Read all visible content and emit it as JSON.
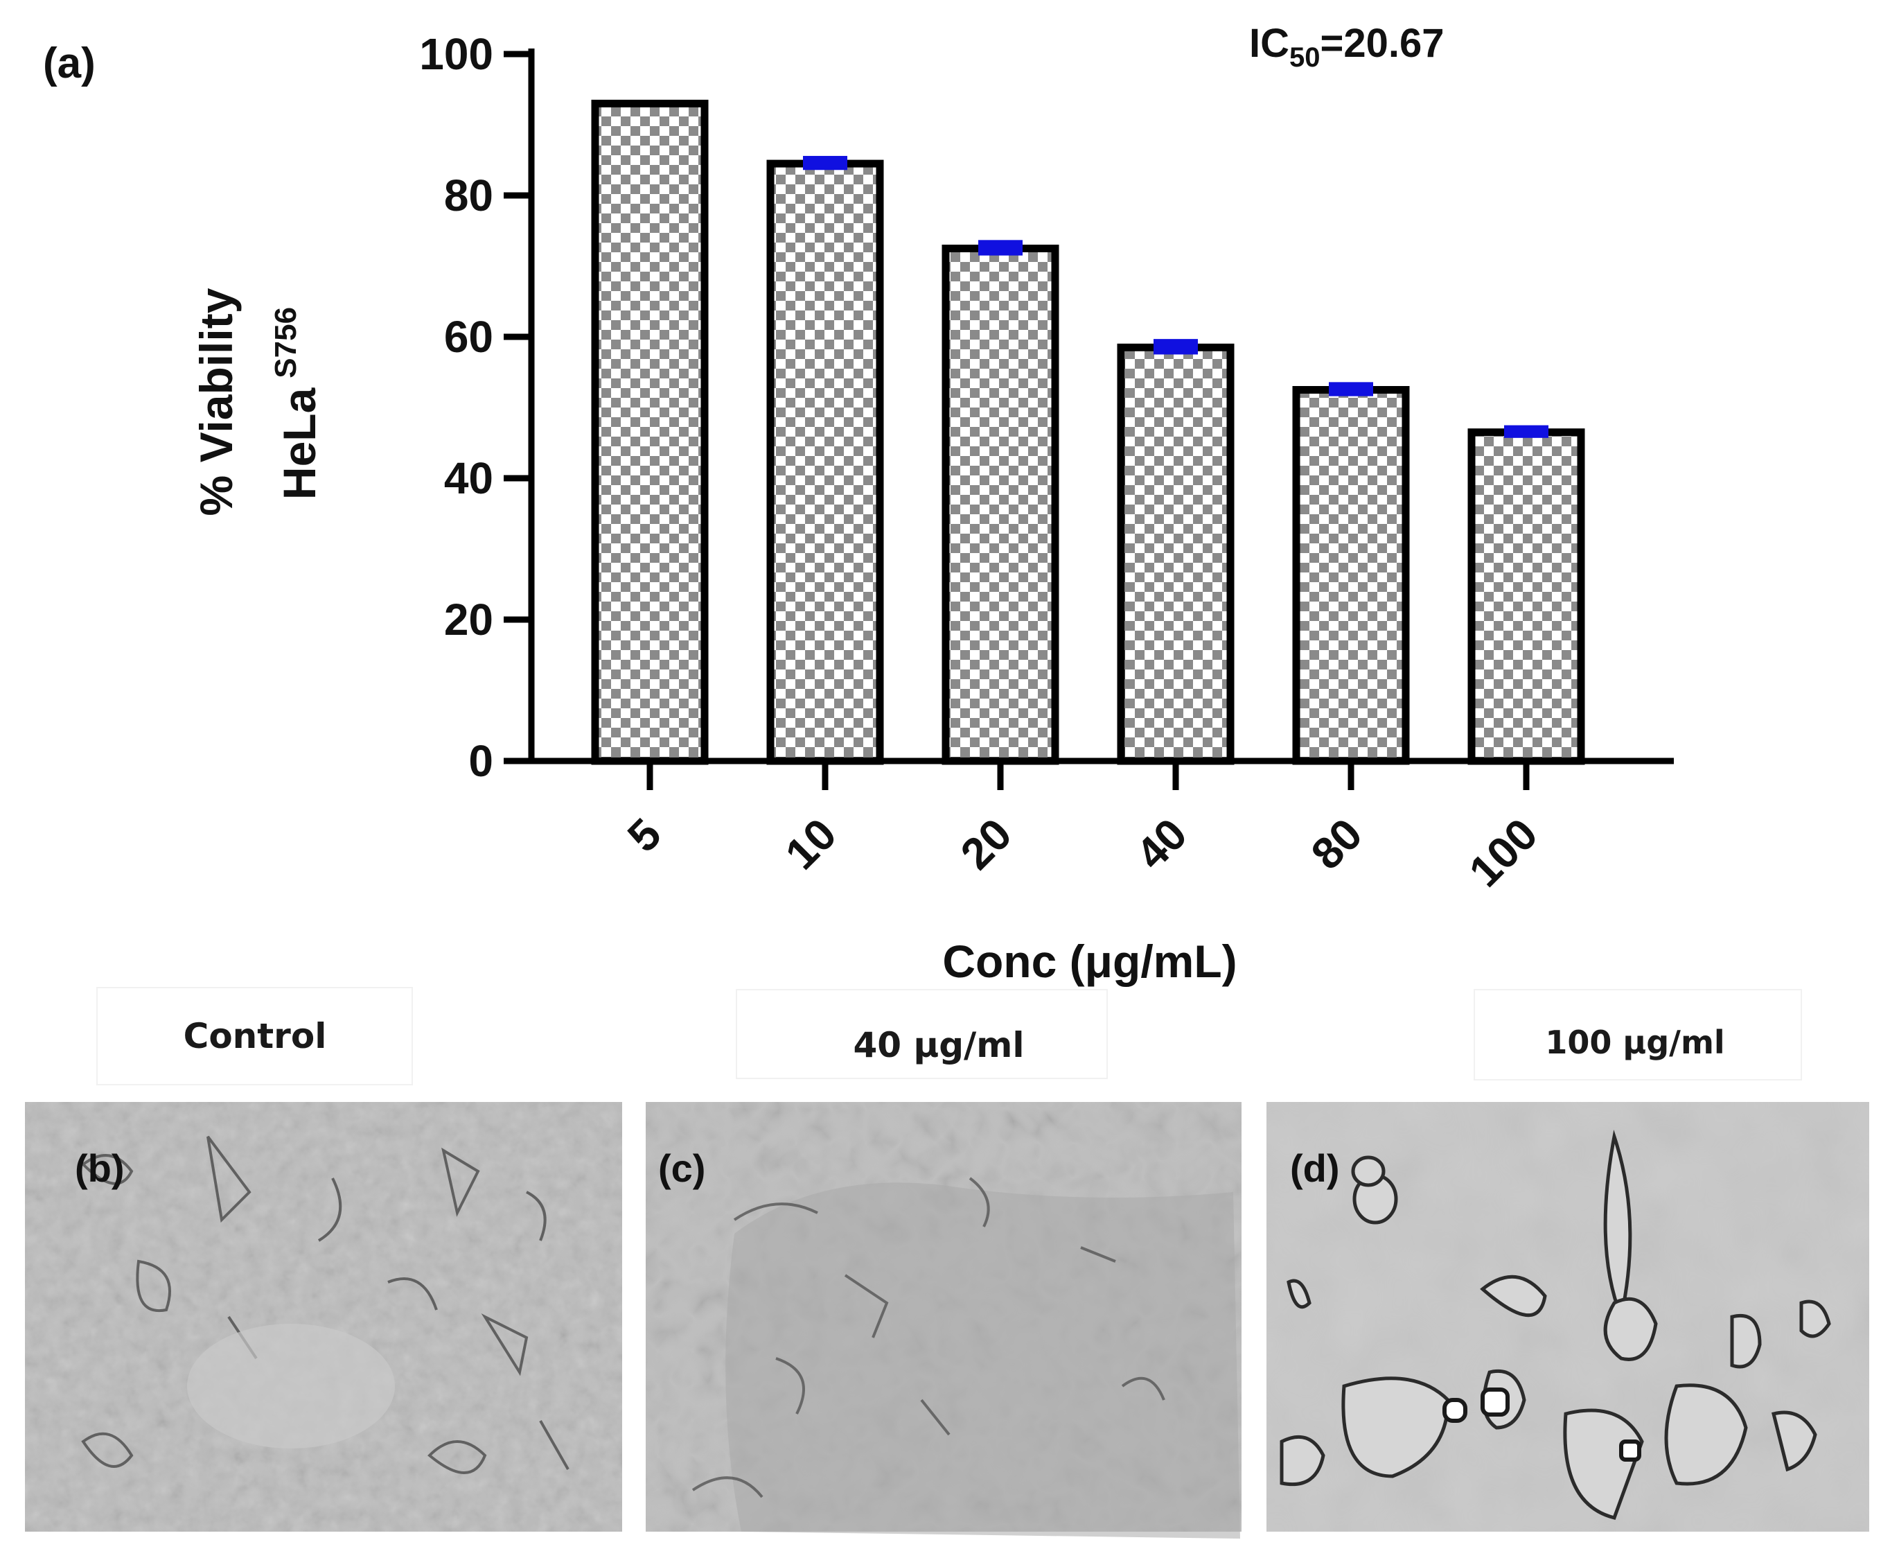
{
  "panel_label": "(a)",
  "ic50": {
    "prefix": "IC",
    "subscript": "50",
    "value": "=20.67"
  },
  "chart_data": {
    "type": "bar",
    "categories": [
      "5",
      "10",
      "20",
      "40",
      "80",
      "100"
    ],
    "values": [
      93,
      84.5,
      72.5,
      58.5,
      52.5,
      46.5
    ],
    "errors": [
      0,
      0.7,
      0.8,
      0.8,
      0.7,
      0.6
    ],
    "xlabel": "Conc (μg/mL)",
    "ylabel_line1": "% Viability",
    "ylabel_line2": "HeLa",
    "ylabel_superscript": "S756",
    "ylim": [
      0,
      100
    ],
    "yticks": [
      0,
      20,
      40,
      60,
      80,
      100
    ],
    "bar_pattern": "checkerboard",
    "bar_colors": {
      "outline": "#000000",
      "check_light": "#ffffff",
      "check_dark": "#8a8a8a",
      "error_bar": "#1010e0"
    },
    "grid": false
  },
  "micrographs": [
    {
      "caption": "Control",
      "label": "(b)"
    },
    {
      "caption": "40 μg/ml",
      "label": "(c)"
    },
    {
      "caption": "100 μg/ml",
      "label": "(d)"
    }
  ]
}
